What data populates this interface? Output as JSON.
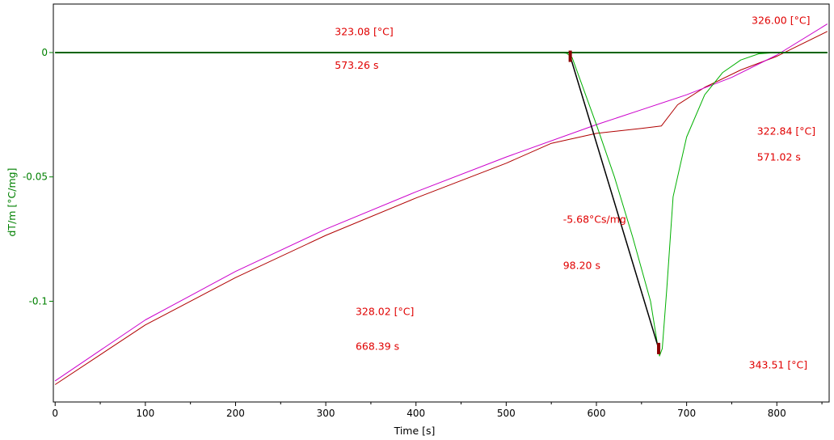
{
  "chart_data": {
    "type": "line",
    "title": "",
    "xlabel": "Time [s]",
    "ylabel": "dT/m  [°C/mg]",
    "xlim": [
      -2,
      858
    ],
    "ylim": [
      -0.1405,
      0.0195
    ],
    "x_ticks": [
      0,
      100,
      200,
      300,
      400,
      500,
      600,
      700,
      800
    ],
    "x_tick_labels": [
      "0",
      "100",
      "200",
      "300",
      "400",
      "500",
      "600",
      "700",
      "800"
    ],
    "y_ticks": [
      0,
      -0.05,
      -0.1
    ],
    "y_tick_labels": [
      "0",
      "-0.05",
      "-0.1"
    ],
    "grid": false,
    "colors": {
      "axis_text": "#008000",
      "annotation": "#e00000",
      "series_green": "#00b000",
      "series_purple": "#cc00cc",
      "series_red": "#b00000",
      "series_blue": "#0000cc",
      "series_black": "#000000",
      "series_darkgreen": "#006400"
    },
    "series": [
      {
        "values": [
          [
            0,
            -0.1335
          ],
          [
            100,
            -0.1095
          ],
          [
            200,
            -0.0905
          ],
          [
            300,
            -0.0735
          ],
          [
            400,
            -0.0585
          ],
          [
            500,
            -0.0445
          ],
          [
            550,
            -0.0365
          ],
          [
            600,
            -0.0325
          ],
          [
            650,
            -0.0305
          ],
          [
            672,
            -0.0295
          ],
          [
            690,
            -0.021
          ],
          [
            720,
            -0.014
          ],
          [
            760,
            -0.007
          ],
          [
            800,
            -0.0015
          ],
          [
            856,
            0.0085
          ]
        ]
      },
      {
        "values": [
          [
            0,
            -0.132
          ],
          [
            100,
            -0.1075
          ],
          [
            200,
            -0.088
          ],
          [
            300,
            -0.071
          ],
          [
            400,
            -0.056
          ],
          [
            500,
            -0.042
          ],
          [
            600,
            -0.029
          ],
          [
            650,
            -0.023
          ],
          [
            700,
            -0.017
          ],
          [
            750,
            -0.01
          ],
          [
            800,
            -0.001
          ],
          [
            856,
            0.0115
          ]
        ]
      },
      {
        "values": [
          [
            0,
            0
          ],
          [
            560,
            0
          ],
          [
            567,
            -0.0003
          ],
          [
            573,
            -0.002
          ],
          [
            580,
            -0.009
          ],
          [
            600,
            -0.029
          ],
          [
            620,
            -0.05
          ],
          [
            640,
            -0.074
          ],
          [
            660,
            -0.1
          ],
          [
            668,
            -0.118
          ],
          [
            670,
            -0.122
          ],
          [
            673,
            -0.119
          ],
          [
            678,
            -0.095
          ],
          [
            685,
            -0.058
          ],
          [
            700,
            -0.034
          ],
          [
            720,
            -0.017
          ],
          [
            740,
            -0.008
          ],
          [
            760,
            -0.003
          ],
          [
            780,
            -0.0005
          ],
          [
            800,
            0
          ],
          [
            856,
            0
          ]
        ]
      },
      {
        "values": [
          [
            570,
            0
          ],
          [
            856,
            0
          ]
        ]
      },
      {
        "values": [
          [
            0,
            0
          ],
          [
            856,
            0
          ]
        ]
      },
      {
        "values": [
          [
            571,
            -0.0015
          ],
          [
            669,
            -0.119
          ]
        ]
      }
    ],
    "annotations": [
      {
        "text": "323.08 [°C]",
        "x": 310,
        "y": 0.007
      },
      {
        "text": "573.26 s",
        "x": 310,
        "y": -0.0065
      },
      {
        "text": "326.00 [°C]",
        "x": 772,
        "y": 0.0115
      },
      {
        "text": "322.84 [°C]",
        "x": 778,
        "y": -0.033
      },
      {
        "text": "571.02 s",
        "x": 778,
        "y": -0.0435
      },
      {
        "text": "-5.68°Cs/mg",
        "x": 563,
        "y": -0.0685
      },
      {
        "text": "98.20 s",
        "x": 563,
        "y": -0.087
      },
      {
        "text": "328.02 [°C]",
        "x": 333,
        "y": -0.1055
      },
      {
        "text": "668.39 s",
        "x": 333,
        "y": -0.1195
      },
      {
        "text": "343.51 [°C]",
        "x": 769,
        "y": -0.127
      }
    ]
  }
}
